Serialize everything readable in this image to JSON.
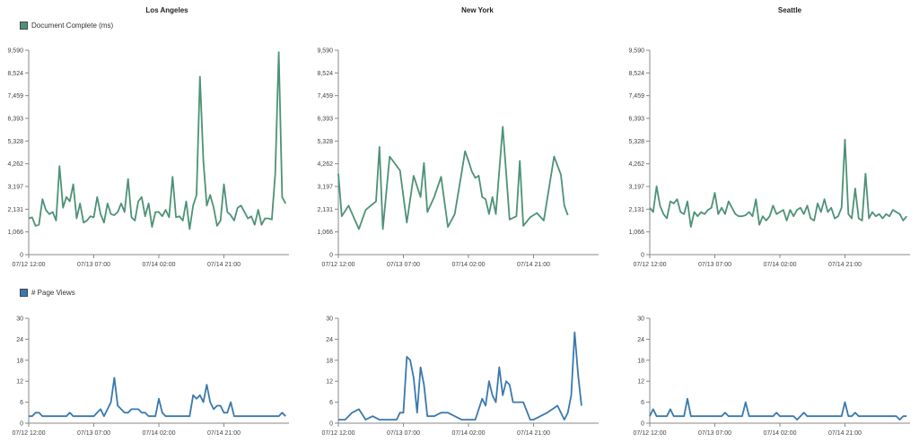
{
  "colors": {
    "doc": "#4d9276",
    "views": "#3a79ae",
    "axis": "#888888",
    "legend_border": "#444444"
  },
  "legend": {
    "doc_label": "Document Complete (ms)",
    "views_label": "# Page Views"
  },
  "cities": [
    "Los Angeles",
    "New York",
    "Seattle"
  ],
  "chart_data": [
    {
      "type": "line",
      "city": "Los Angeles",
      "metric": "Document Complete (ms)",
      "ylim": [
        0,
        9590
      ],
      "yticks": [
        "0",
        "1,066",
        "2,131",
        "3,197",
        "4,262",
        "5,328",
        "6,393",
        "7,459",
        "8,524",
        "9,590"
      ],
      "xticks": [
        {
          "t": 0,
          "label": "07/12 12:00"
        },
        {
          "t": 19,
          "label": "07/13 07:00"
        },
        {
          "t": 38,
          "label": "07/14 02:00"
        },
        {
          "t": 57,
          "label": "07/14 21:00"
        }
      ],
      "xlim": [
        0,
        76
      ],
      "series": [
        {
          "t": [
            0,
            1,
            2,
            3,
            4,
            5,
            6,
            7,
            8,
            9,
            10,
            11,
            12,
            13,
            14,
            15,
            16,
            17,
            18,
            19,
            20,
            21,
            22,
            23,
            24,
            25,
            26,
            27,
            28,
            29,
            30,
            31,
            32,
            33,
            34,
            35,
            36,
            37,
            38,
            39,
            40,
            41,
            42,
            43,
            44,
            45,
            46,
            47,
            48,
            49,
            50,
            51,
            52,
            53,
            54,
            55,
            56,
            57,
            58,
            59,
            60,
            61,
            62,
            63,
            64,
            65,
            66,
            67,
            68,
            69,
            70,
            71,
            72,
            73,
            74,
            75
          ],
          "values": [
            1700,
            1750,
            1350,
            1400,
            2600,
            2100,
            1900,
            2000,
            1600,
            4150,
            2200,
            2700,
            2500,
            3300,
            1700,
            2400,
            1500,
            1600,
            1800,
            1750,
            2700,
            1900,
            1500,
            2400,
            1900,
            1850,
            2000,
            2400,
            2000,
            3550,
            1750,
            1600,
            2500,
            2700,
            1800,
            2400,
            1300,
            2000,
            2000,
            1800,
            2100,
            1750,
            3650,
            1750,
            1800,
            1600,
            2500,
            1200,
            2300,
            2800,
            8350,
            4400,
            2300,
            2800,
            2200,
            1350,
            1600,
            3300,
            2000,
            1850,
            1600,
            2200,
            2300,
            2000,
            1700,
            1800,
            1400,
            2100,
            1400,
            1700,
            1700,
            1650,
            3800,
            9500,
            2700,
            2400
          ]
        }
      ]
    },
    {
      "type": "line",
      "city": "New York",
      "metric": "Document Complete (ms)",
      "ylim": [
        0,
        9590
      ],
      "yticks": [
        "0",
        "1,066",
        "2,131",
        "3,197",
        "4,262",
        "5,328",
        "6,393",
        "7,459",
        "8,524",
        "9,590"
      ],
      "xticks": [
        {
          "t": 0,
          "label": "07/12 12:00"
        },
        {
          "t": 19,
          "label": "07/13 07:00"
        },
        {
          "t": 38,
          "label": "07/14 02:00"
        },
        {
          "t": 57,
          "label": "07/14 21:00"
        }
      ],
      "xlim": [
        0,
        76
      ],
      "series": [
        {
          "t": [
            0,
            1,
            3,
            6,
            8,
            11,
            12,
            13,
            15,
            18,
            20,
            22,
            24,
            25,
            26,
            28,
            30,
            32,
            34,
            35,
            36,
            37,
            38,
            39,
            40,
            41,
            42,
            43,
            44,
            45,
            46,
            48,
            50,
            52,
            53,
            54,
            56,
            58,
            60,
            63,
            65,
            66,
            67
          ],
          "values": [
            3800,
            1800,
            2300,
            1200,
            2100,
            2500,
            5050,
            1200,
            4600,
            3950,
            1500,
            3700,
            2700,
            4300,
            2000,
            2700,
            3650,
            1300,
            1900,
            2900,
            3850,
            4850,
            4400,
            3900,
            3600,
            3700,
            2700,
            2600,
            1900,
            2700,
            1900,
            6000,
            1650,
            1800,
            4400,
            1350,
            1750,
            1950,
            1600,
            4600,
            3750,
            2300,
            1850
          ]
        }
      ]
    },
    {
      "type": "line",
      "city": "Seattle",
      "metric": "Document Complete (ms)",
      "ylim": [
        0,
        9590
      ],
      "yticks": [
        "0",
        "1,066",
        "2,131",
        "3,197",
        "4,262",
        "5,328",
        "6,393",
        "7,459",
        "8,524",
        "9,590"
      ],
      "xticks": [
        {
          "t": 0,
          "label": "07/12 12:00"
        },
        {
          "t": 19,
          "label": "07/13 07:00"
        },
        {
          "t": 38,
          "label": "07/14 02:00"
        },
        {
          "t": 57,
          "label": "07/14 21:00"
        }
      ],
      "xlim": [
        0,
        76
      ],
      "series": [
        {
          "t": [
            0,
            1,
            2,
            3,
            4,
            5,
            6,
            7,
            8,
            9,
            10,
            11,
            12,
            13,
            14,
            15,
            16,
            17,
            18,
            19,
            20,
            21,
            22,
            23,
            24,
            25,
            26,
            27,
            28,
            29,
            30,
            31,
            32,
            33,
            34,
            35,
            36,
            37,
            38,
            39,
            40,
            41,
            42,
            43,
            44,
            45,
            46,
            47,
            48,
            49,
            50,
            51,
            52,
            53,
            54,
            55,
            56,
            57,
            58,
            59,
            60,
            61,
            62,
            63,
            64,
            65,
            66,
            67,
            68,
            69,
            70,
            71,
            72,
            73,
            74,
            75
          ],
          "values": [
            2200,
            2000,
            3200,
            2300,
            1900,
            1700,
            2500,
            2400,
            2600,
            2000,
            1900,
            2500,
            1300,
            2000,
            1800,
            2000,
            1900,
            2100,
            2200,
            2900,
            1900,
            2200,
            1900,
            2500,
            2200,
            1900,
            1800,
            1800,
            1850,
            2000,
            1800,
            2600,
            1400,
            1800,
            1600,
            1800,
            2300,
            1900,
            2000,
            2100,
            1600,
            2100,
            1800,
            2100,
            2200,
            1900,
            2300,
            1700,
            1600,
            2400,
            2000,
            2600,
            2000,
            2200,
            1700,
            1800,
            2200,
            5400,
            1900,
            1700,
            3100,
            1700,
            1600,
            3800,
            1700,
            2000,
            1800,
            1900,
            1700,
            1900,
            1800,
            2100,
            2000,
            1900,
            1600,
            1800
          ]
        }
      ]
    },
    {
      "type": "line",
      "city": "Los Angeles",
      "metric": "# Page Views",
      "ylim": [
        0,
        30
      ],
      "yticks": [
        "0",
        "6",
        "12",
        "18",
        "24",
        "30"
      ],
      "xticks": [
        {
          "t": 0,
          "label": "07/12 12:00"
        },
        {
          "t": 19,
          "label": "07/13 07:00"
        },
        {
          "t": 38,
          "label": "07/14 02:00"
        },
        {
          "t": 57,
          "label": "07/14 21:00"
        }
      ],
      "xlim": [
        0,
        76
      ],
      "series": [
        {
          "t": [
            0,
            1,
            2,
            3,
            4,
            5,
            6,
            7,
            8,
            9,
            10,
            11,
            12,
            13,
            14,
            15,
            16,
            17,
            18,
            19,
            20,
            21,
            22,
            23,
            24,
            25,
            26,
            27,
            28,
            29,
            30,
            31,
            32,
            33,
            34,
            35,
            36,
            37,
            38,
            39,
            40,
            41,
            42,
            43,
            44,
            45,
            46,
            47,
            48,
            49,
            50,
            51,
            52,
            53,
            54,
            55,
            56,
            57,
            58,
            59,
            60,
            61,
            62,
            63,
            64,
            65,
            66,
            67,
            68,
            69,
            70,
            71,
            72,
            73,
            74,
            75
          ],
          "values": [
            2,
            2,
            3,
            3,
            2,
            2,
            2,
            2,
            2,
            2,
            2,
            2,
            3,
            2,
            2,
            2,
            2,
            2,
            2,
            2,
            3,
            4,
            2,
            4,
            6,
            13,
            5,
            4,
            3,
            3,
            4,
            4,
            4,
            3,
            3,
            2,
            2,
            2,
            7,
            3,
            2,
            2,
            2,
            2,
            2,
            2,
            2,
            2,
            8,
            7,
            8,
            6,
            11,
            6,
            4,
            5,
            5,
            3,
            3,
            6,
            2,
            2,
            2,
            2,
            2,
            2,
            2,
            2,
            2,
            2,
            2,
            2,
            2,
            2,
            3,
            2
          ]
        }
      ]
    },
    {
      "type": "line",
      "city": "New York",
      "metric": "# Page Views",
      "ylim": [
        0,
        30
      ],
      "yticks": [
        "0",
        "6",
        "12",
        "18",
        "24",
        "30"
      ],
      "xticks": [
        {
          "t": 0,
          "label": "07/12 12:00"
        },
        {
          "t": 19,
          "label": "07/13 07:00"
        },
        {
          "t": 38,
          "label": "07/14 02:00"
        },
        {
          "t": 57,
          "label": "07/14 21:00"
        }
      ],
      "xlim": [
        0,
        76
      ],
      "series": [
        {
          "t": [
            0,
            2,
            4,
            6,
            8,
            10,
            12,
            15,
            17,
            18,
            19,
            20,
            21,
            22,
            23,
            24,
            25,
            26,
            27,
            28,
            30,
            32,
            34,
            36,
            38,
            40,
            42,
            43,
            44,
            45,
            46,
            47,
            48,
            49,
            50,
            51,
            52,
            54,
            56,
            57,
            59,
            61,
            64,
            66,
            67,
            68,
            69,
            70,
            71
          ],
          "values": [
            1,
            1,
            3,
            4,
            1,
            2,
            1,
            1,
            1,
            3,
            3,
            19,
            18,
            13,
            3,
            16,
            11,
            2,
            2,
            2,
            3,
            3,
            2,
            1,
            1,
            1,
            7,
            5,
            12,
            8,
            6,
            16,
            8,
            12,
            11,
            6,
            6,
            6,
            1,
            1,
            2,
            3,
            5,
            1,
            3,
            8,
            26,
            14,
            5
          ]
        }
      ]
    },
    {
      "type": "line",
      "city": "Seattle",
      "metric": "# Page Views",
      "ylim": [
        0,
        30
      ],
      "yticks": [
        "0",
        "6",
        "12",
        "18",
        "24",
        "30"
      ],
      "xticks": [
        {
          "t": 0,
          "label": "07/12 12:00"
        },
        {
          "t": 19,
          "label": "07/13 07:00"
        },
        {
          "t": 38,
          "label": "07/14 02:00"
        },
        {
          "t": 57,
          "label": "07/14 21:00"
        }
      ],
      "xlim": [
        0,
        76
      ],
      "series": [
        {
          "t": [
            0,
            1,
            2,
            3,
            4,
            5,
            6,
            7,
            8,
            9,
            10,
            11,
            12,
            13,
            14,
            15,
            16,
            17,
            18,
            19,
            20,
            21,
            22,
            23,
            24,
            25,
            26,
            27,
            28,
            29,
            30,
            31,
            32,
            33,
            34,
            35,
            36,
            37,
            38,
            39,
            40,
            41,
            42,
            43,
            44,
            45,
            46,
            47,
            48,
            49,
            50,
            51,
            52,
            53,
            54,
            55,
            56,
            57,
            58,
            59,
            60,
            61,
            62,
            63,
            64,
            65,
            66,
            67,
            68,
            69,
            70,
            71,
            72,
            73,
            74,
            75
          ],
          "values": [
            2,
            4,
            2,
            2,
            2,
            2,
            4,
            2,
            2,
            2,
            2,
            7,
            2,
            2,
            2,
            2,
            2,
            2,
            2,
            2,
            2,
            2,
            3,
            2,
            2,
            2,
            2,
            2,
            6,
            2,
            2,
            2,
            2,
            2,
            2,
            2,
            2,
            3,
            2,
            2,
            2,
            2,
            2,
            1,
            2,
            3,
            2,
            2,
            2,
            2,
            2,
            2,
            2,
            2,
            2,
            2,
            2,
            6,
            2,
            2,
            3,
            2,
            2,
            2,
            2,
            2,
            2,
            2,
            2,
            2,
            2,
            2,
            2,
            1,
            2,
            2
          ]
        }
      ]
    }
  ]
}
